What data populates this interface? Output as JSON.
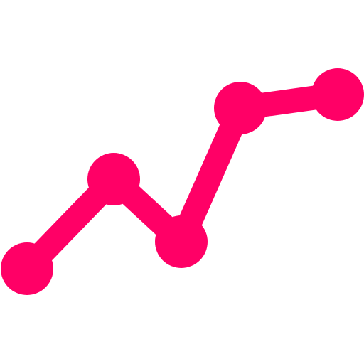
{
  "icon": {
    "name": "line-chart-icon",
    "color": "#ff0066"
  }
}
